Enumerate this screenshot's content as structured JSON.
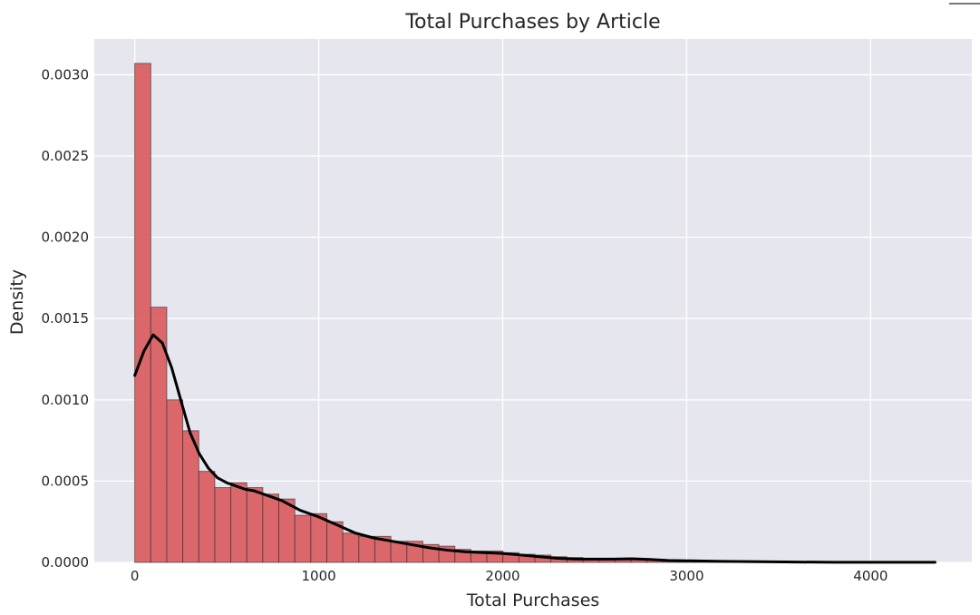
{
  "chart_data": {
    "type": "histogram",
    "title": "Total Purchases by Article",
    "xlabel": "Total Purchases",
    "ylabel": "Density",
    "xlim": [
      -220,
      4550
    ],
    "ylim": [
      0,
      0.00322
    ],
    "x_ticks": [
      0,
      1000,
      2000,
      3000,
      4000
    ],
    "x_tick_labels": [
      "0",
      "1000",
      "2000",
      "3000",
      "4000"
    ],
    "y_ticks": [
      0,
      0.0005,
      0.001,
      0.0015,
      0.002,
      0.0025,
      0.003
    ],
    "y_tick_labels": [
      "0.0000",
      "0.0005",
      "0.0010",
      "0.0015",
      "0.0020",
      "0.0025",
      "0.0030"
    ],
    "grid": true,
    "bar_color": "#d9595b",
    "kde_color": "#000000",
    "background": "#e6e6ef",
    "bin_edges": [
      0,
      87,
      174,
      261,
      348,
      435,
      522,
      609,
      696,
      783,
      870,
      957,
      1044,
      1131,
      1218,
      1305,
      1392,
      1479,
      1566,
      1653,
      1740,
      1827,
      1914,
      2001,
      2088,
      2175,
      2262,
      2349,
      2436,
      2523,
      2610,
      2697,
      2784,
      2871,
      2958,
      3045,
      3132,
      3219,
      3306,
      3393,
      3480,
      3567,
      3654,
      3741,
      3828,
      3915,
      4002,
      4089,
      4176,
      4263,
      4350
    ],
    "densities": [
      0.00307,
      0.00157,
      0.001,
      0.00081,
      0.00056,
      0.00046,
      0.00049,
      0.00046,
      0.00042,
      0.00039,
      0.00029,
      0.0003,
      0.00025,
      0.00018,
      0.00016,
      0.00016,
      0.00013,
      0.00013,
      0.00011,
      0.0001,
      8e-05,
      7e-05,
      7e-05,
      6e-05,
      5e-05,
      4.5e-05,
      3.5e-05,
      3e-05,
      2.5e-05,
      2e-05,
      2e-05,
      2e-05,
      1.5e-05,
      1e-05,
      1e-05,
      1e-05,
      8e-06,
      5e-06,
      5e-06,
      5e-06,
      3e-06,
      3e-06,
      3e-06,
      2e-06,
      2e-06,
      2e-06,
      2e-06,
      2e-06,
      2e-06,
      2e-06
    ],
    "kde": {
      "x": [
        0,
        50,
        100,
        150,
        200,
        250,
        300,
        350,
        400,
        450,
        500,
        550,
        600,
        650,
        700,
        750,
        800,
        850,
        900,
        950,
        1000,
        1100,
        1200,
        1300,
        1400,
        1500,
        1600,
        1700,
        1800,
        1900,
        2000,
        2100,
        2200,
        2300,
        2400,
        2500,
        2600,
        2700,
        2800,
        2900,
        3000,
        3200,
        3400,
        3600,
        3800,
        4000,
        4200,
        4350
      ],
      "y": [
        0.00115,
        0.0013,
        0.0014,
        0.00135,
        0.0012,
        0.001,
        0.0008,
        0.00067,
        0.00058,
        0.00052,
        0.00049,
        0.00047,
        0.00045,
        0.00044,
        0.00042,
        0.0004,
        0.00038,
        0.00035,
        0.00032,
        0.0003,
        0.00028,
        0.00023,
        0.00018,
        0.00015,
        0.00013,
        0.00011,
        9e-05,
        7.5e-05,
        6.5e-05,
        6e-05,
        5.5e-05,
        4.5e-05,
        3.5e-05,
        2.5e-05,
        2e-05,
        2e-05,
        2e-05,
        2.2e-05,
        1.8e-05,
        1.2e-05,
        1e-05,
        6e-06,
        4e-06,
        2e-06,
        1e-06,
        1e-06,
        1e-06,
        1e-06
      ]
    }
  }
}
